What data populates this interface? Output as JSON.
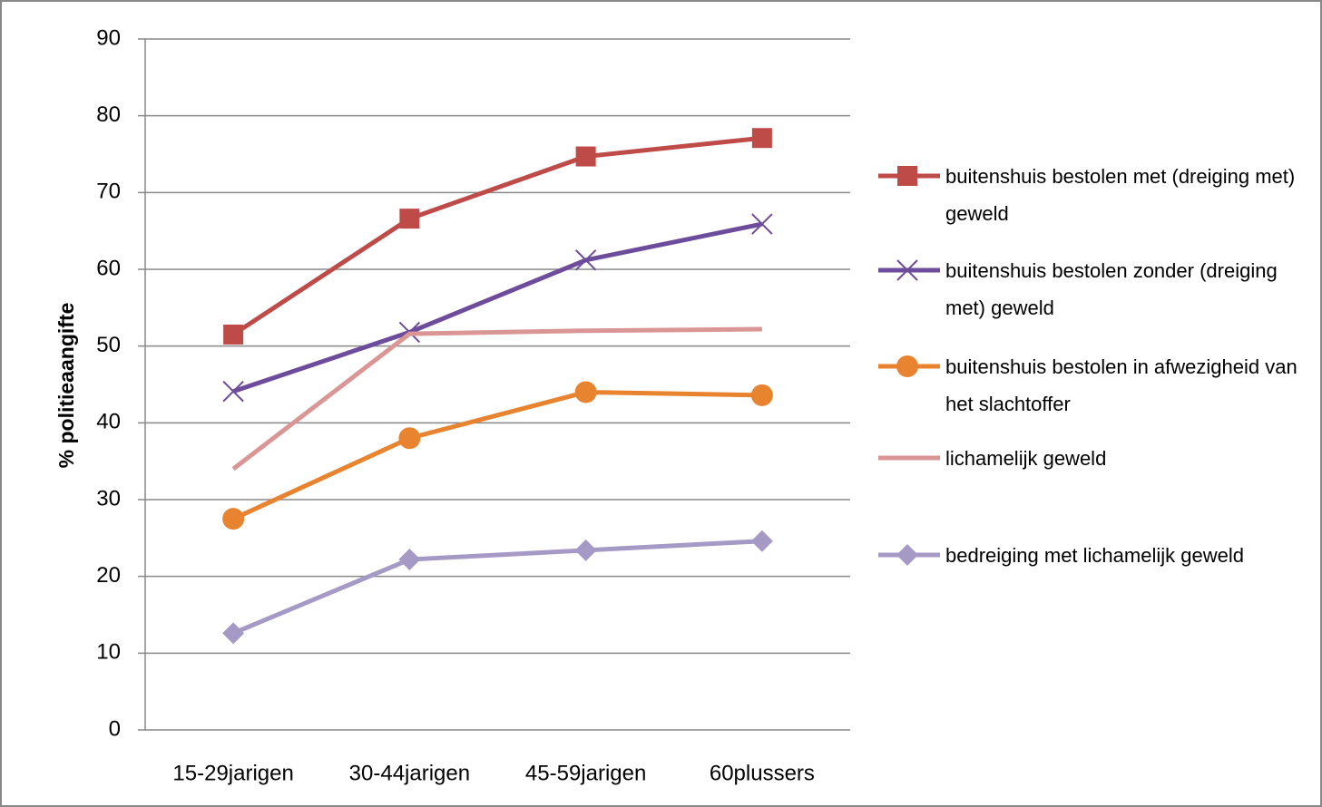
{
  "chart_data": {
    "type": "line",
    "y_label": "% politieaangifte",
    "categories": [
      "15-29jarigen",
      "30-44jarigen",
      "45-59jarigen",
      "60plussers"
    ],
    "series": [
      {
        "name": "buitenshuis bestolen met (dreiging met) geweld",
        "color": "#be4b48",
        "marker": "square",
        "values": [
          51.5,
          66.6,
          74.7,
          77.1
        ]
      },
      {
        "name": "buitenshuis bestolen zonder (dreiging met) geweld",
        "color": "#6d4c9c",
        "marker": "x",
        "values": [
          44.1,
          51.8,
          61.2,
          65.9
        ]
      },
      {
        "name": "buitenshuis bestolen in afwezigheid van het slachtoffer",
        "color": "#e8832f",
        "marker": "circle",
        "values": [
          27.5,
          38.0,
          44.0,
          43.6
        ]
      },
      {
        "name": "lichamelijk geweld",
        "color": "#d99694",
        "marker": "none",
        "values": [
          34.0,
          51.6,
          52.0,
          52.2
        ]
      },
      {
        "name": "bedreiging met lichamelijk geweld",
        "color": "#a599c6",
        "marker": "diamond",
        "values": [
          12.6,
          22.2,
          23.4,
          24.6
        ]
      }
    ],
    "ylim": [
      0,
      90
    ],
    "yticks": [
      0,
      10,
      20,
      30,
      40,
      50,
      60,
      70,
      80,
      90
    ],
    "grid": true,
    "legend": "right"
  }
}
